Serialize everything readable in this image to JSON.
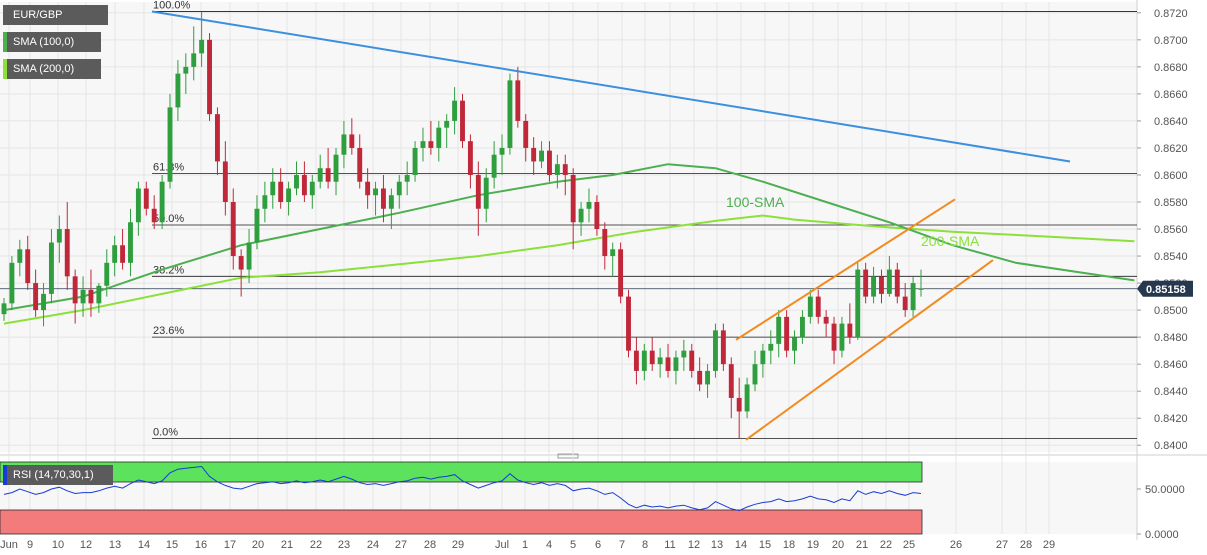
{
  "legend": {
    "symbol": "EUR/GBP",
    "sma100": "SMA (100,0)",
    "sma200": "SMA (200,0)",
    "rsi": "RSI (14,70,30,1)"
  },
  "colors": {
    "bull": "#2e9e3e",
    "bear": "#c0283a",
    "sma100": "#4caf50",
    "sma200": "#8be03a",
    "downtrend": "#3b8fe0",
    "channel": "#f28a1e",
    "rsi_line": "#1a3bd6",
    "rsi_over": "#5ce25c",
    "rsi_under": "#f47b7b",
    "price_tag": "#26384f"
  },
  "annotations": {
    "sma100": "100-SMA",
    "sma200": "200-SMA"
  },
  "chart_data": [
    {
      "type": "candlestick",
      "title": "EUR/GBP",
      "ylim": [
        0.8395,
        0.8728
      ],
      "y_ticks": [
        "0.8720",
        "0.8700",
        "0.8680",
        "0.8660",
        "0.8640",
        "0.8620",
        "0.8600",
        "0.8580",
        "0.8560",
        "0.8540",
        "0.8520",
        "0.8500",
        "0.8480",
        "0.8460",
        "0.8440",
        "0.8420",
        "0.8400"
      ],
      "x_ticks": [
        "Jun",
        "9",
        "10",
        "12",
        "13",
        "14",
        "15",
        "16",
        "17",
        "20",
        "21",
        "22",
        "23",
        "24",
        "27",
        "28",
        "29",
        "Jul",
        "1",
        "4",
        "5",
        "6",
        "7",
        "8",
        "11",
        "12",
        "13",
        "14",
        "15",
        "18",
        "19",
        "20",
        "21",
        "22",
        "25",
        "26",
        "27",
        "28",
        "29"
      ],
      "last_price": "0.85158",
      "fibonacci": [
        {
          "label": "100.0%",
          "value": 0.8721
        },
        {
          "label": "61.8%",
          "value": 0.8601
        },
        {
          "label": "50.0%",
          "value": 0.8563
        },
        {
          "label": "38.2%",
          "value": 0.8525
        },
        {
          "label": "23.6%",
          "value": 0.848
        },
        {
          "label": "0.0%",
          "value": 0.8405
        }
      ],
      "candles": [
        [
          0.8497,
          0.8509,
          0.8492,
          0.8505
        ],
        [
          0.8505,
          0.854,
          0.85,
          0.8535
        ],
        [
          0.8535,
          0.8552,
          0.8525,
          0.8545
        ],
        [
          0.8545,
          0.8555,
          0.8515,
          0.852
        ],
        [
          0.852,
          0.853,
          0.8495,
          0.85
        ],
        [
          0.85,
          0.852,
          0.8488,
          0.8512
        ],
        [
          0.8512,
          0.856,
          0.8505,
          0.855
        ],
        [
          0.855,
          0.857,
          0.8535,
          0.856
        ],
        [
          0.856,
          0.858,
          0.8515,
          0.8525
        ],
        [
          0.8525,
          0.853,
          0.849,
          0.8505
        ],
        [
          0.8505,
          0.8525,
          0.8495,
          0.8515
        ],
        [
          0.8515,
          0.853,
          0.8495,
          0.8505
        ],
        [
          0.8505,
          0.852,
          0.8498,
          0.8518
        ],
        [
          0.8518,
          0.8545,
          0.851,
          0.8535
        ],
        [
          0.8535,
          0.8555,
          0.8525,
          0.8548
        ],
        [
          0.8548,
          0.856,
          0.853,
          0.8535
        ],
        [
          0.8535,
          0.8575,
          0.8525,
          0.8565
        ],
        [
          0.8565,
          0.8595,
          0.8555,
          0.859
        ],
        [
          0.859,
          0.8595,
          0.857,
          0.8575
        ],
        [
          0.8575,
          0.8585,
          0.856,
          0.8565
        ],
        [
          0.8565,
          0.86,
          0.856,
          0.8595
        ],
        [
          0.8595,
          0.866,
          0.859,
          0.865
        ],
        [
          0.865,
          0.8685,
          0.864,
          0.8675
        ],
        [
          0.8675,
          0.869,
          0.866,
          0.868
        ],
        [
          0.868,
          0.871,
          0.867,
          0.869
        ],
        [
          0.869,
          0.8721,
          0.868,
          0.87
        ],
        [
          0.87,
          0.8705,
          0.864,
          0.8645
        ],
        [
          0.8645,
          0.865,
          0.86,
          0.861
        ],
        [
          0.861,
          0.8625,
          0.857,
          0.858
        ],
        [
          0.858,
          0.859,
          0.853,
          0.854
        ],
        [
          0.854,
          0.8545,
          0.851,
          0.853
        ],
        [
          0.853,
          0.856,
          0.852,
          0.855
        ],
        [
          0.855,
          0.8585,
          0.8545,
          0.8575
        ],
        [
          0.8575,
          0.8595,
          0.8565,
          0.8585
        ],
        [
          0.8585,
          0.8605,
          0.8575,
          0.8595
        ],
        [
          0.8595,
          0.8605,
          0.8575,
          0.858
        ],
        [
          0.858,
          0.8595,
          0.857,
          0.859
        ],
        [
          0.859,
          0.861,
          0.8585,
          0.86
        ],
        [
          0.86,
          0.861,
          0.858,
          0.8585
        ],
        [
          0.8585,
          0.86,
          0.8575,
          0.8595
        ],
        [
          0.8595,
          0.8615,
          0.859,
          0.8605
        ],
        [
          0.8605,
          0.862,
          0.859,
          0.8595
        ],
        [
          0.8595,
          0.862,
          0.8585,
          0.8615
        ],
        [
          0.8615,
          0.864,
          0.8605,
          0.863
        ],
        [
          0.863,
          0.8642,
          0.8615,
          0.862
        ],
        [
          0.862,
          0.863,
          0.859,
          0.8595
        ],
        [
          0.8595,
          0.8605,
          0.8575,
          0.8585
        ],
        [
          0.8585,
          0.8595,
          0.857,
          0.859
        ],
        [
          0.859,
          0.86,
          0.8565,
          0.8575
        ],
        [
          0.8575,
          0.859,
          0.856,
          0.8585
        ],
        [
          0.8585,
          0.86,
          0.8575,
          0.8595
        ],
        [
          0.8595,
          0.861,
          0.8585,
          0.86
        ],
        [
          0.86,
          0.8625,
          0.8595,
          0.862
        ],
        [
          0.862,
          0.8635,
          0.861,
          0.8625
        ],
        [
          0.8625,
          0.864,
          0.8615,
          0.862
        ],
        [
          0.862,
          0.864,
          0.861,
          0.8635
        ],
        [
          0.8635,
          0.8645,
          0.862,
          0.864
        ],
        [
          0.864,
          0.8665,
          0.863,
          0.8655
        ],
        [
          0.8655,
          0.866,
          0.862,
          0.8625
        ],
        [
          0.8625,
          0.863,
          0.859,
          0.86
        ],
        [
          0.86,
          0.861,
          0.8555,
          0.8575
        ],
        [
          0.8575,
          0.8605,
          0.8565,
          0.8598
        ],
        [
          0.8598,
          0.8625,
          0.859,
          0.8615
        ],
        [
          0.8615,
          0.863,
          0.86,
          0.862
        ],
        [
          0.862,
          0.8675,
          0.8615,
          0.867
        ],
        [
          0.867,
          0.868,
          0.8635,
          0.864
        ],
        [
          0.864,
          0.8645,
          0.861,
          0.862
        ],
        [
          0.862,
          0.8628,
          0.86,
          0.861
        ],
        [
          0.861,
          0.8625,
          0.8605,
          0.8618
        ],
        [
          0.8618,
          0.8625,
          0.8595,
          0.86
        ],
        [
          0.86,
          0.8615,
          0.859,
          0.8608
        ],
        [
          0.8608,
          0.8615,
          0.8585,
          0.86
        ],
        [
          0.86,
          0.8605,
          0.8545,
          0.8565
        ],
        [
          0.8565,
          0.858,
          0.8555,
          0.8575
        ],
        [
          0.8575,
          0.859,
          0.8565,
          0.858
        ],
        [
          0.858,
          0.8585,
          0.8555,
          0.856
        ],
        [
          0.856,
          0.8565,
          0.853,
          0.854
        ],
        [
          0.854,
          0.855,
          0.8525,
          0.8545
        ],
        [
          0.8545,
          0.855,
          0.8505,
          0.851
        ],
        [
          0.851,
          0.8515,
          0.8465,
          0.847
        ],
        [
          0.847,
          0.848,
          0.8445,
          0.8455
        ],
        [
          0.8455,
          0.8475,
          0.8448,
          0.847
        ],
        [
          0.847,
          0.848,
          0.8455,
          0.846
        ],
        [
          0.846,
          0.8472,
          0.845,
          0.8465
        ],
        [
          0.8465,
          0.8475,
          0.845,
          0.8455
        ],
        [
          0.8455,
          0.847,
          0.8445,
          0.8465
        ],
        [
          0.8465,
          0.8478,
          0.8455,
          0.847
        ],
        [
          0.847,
          0.8475,
          0.845,
          0.8455
        ],
        [
          0.8455,
          0.8465,
          0.844,
          0.8445
        ],
        [
          0.8445,
          0.846,
          0.8435,
          0.8455
        ],
        [
          0.8455,
          0.849,
          0.845,
          0.8485
        ],
        [
          0.8485,
          0.849,
          0.8455,
          0.846
        ],
        [
          0.846,
          0.8465,
          0.842,
          0.8435
        ],
        [
          0.8435,
          0.845,
          0.8405,
          0.8425
        ],
        [
          0.8425,
          0.845,
          0.842,
          0.8445
        ],
        [
          0.8445,
          0.847,
          0.844,
          0.846
        ],
        [
          0.846,
          0.8475,
          0.845,
          0.847
        ],
        [
          0.847,
          0.8485,
          0.846,
          0.8475
        ],
        [
          0.8475,
          0.85,
          0.8465,
          0.8495
        ],
        [
          0.8495,
          0.85,
          0.8465,
          0.847
        ],
        [
          0.847,
          0.8485,
          0.846,
          0.848
        ],
        [
          0.848,
          0.85,
          0.8475,
          0.8495
        ],
        [
          0.8495,
          0.8515,
          0.849,
          0.851
        ],
        [
          0.851,
          0.8515,
          0.849,
          0.8495
        ],
        [
          0.8495,
          0.85,
          0.848,
          0.849
        ],
        [
          0.849,
          0.8495,
          0.846,
          0.847
        ],
        [
          0.847,
          0.8495,
          0.8465,
          0.849
        ],
        [
          0.849,
          0.8505,
          0.8475,
          0.848
        ],
        [
          0.848,
          0.8535,
          0.8478,
          0.853
        ],
        [
          0.853,
          0.8535,
          0.8505,
          0.851
        ],
        [
          0.851,
          0.8532,
          0.8505,
          0.8525
        ],
        [
          0.8525,
          0.853,
          0.8505,
          0.8512
        ],
        [
          0.8512,
          0.854,
          0.851,
          0.853
        ],
        [
          0.853,
          0.8535,
          0.8505,
          0.851
        ],
        [
          0.851,
          0.852,
          0.8495,
          0.85
        ],
        [
          0.85,
          0.8525,
          0.8495,
          0.852
        ],
        [
          0.8515,
          0.853,
          0.851,
          0.8516
        ]
      ],
      "sma100": [
        [
          0,
          0.85
        ],
        [
          10,
          0.851
        ],
        [
          20,
          0.853
        ],
        [
          30,
          0.8548
        ],
        [
          40,
          0.856
        ],
        [
          50,
          0.8572
        ],
        [
          60,
          0.8585
        ],
        [
          70,
          0.8595
        ],
        [
          77,
          0.86
        ],
        [
          84,
          0.8608
        ],
        [
          90,
          0.8605
        ],
        [
          96,
          0.8595
        ],
        [
          104,
          0.858
        ],
        [
          112,
          0.8565
        ],
        [
          120,
          0.8548
        ],
        [
          128,
          0.8535
        ],
        [
          136,
          0.8528
        ],
        [
          143,
          0.8522
        ]
      ],
      "sma200": [
        [
          0,
          0.849
        ],
        [
          10,
          0.85
        ],
        [
          20,
          0.8512
        ],
        [
          30,
          0.8524
        ],
        [
          40,
          0.8528
        ],
        [
          50,
          0.8534
        ],
        [
          60,
          0.854
        ],
        [
          70,
          0.8548
        ],
        [
          80,
          0.8558
        ],
        [
          90,
          0.8566
        ],
        [
          96,
          0.857
        ],
        [
          100,
          0.8567
        ],
        [
          110,
          0.8562
        ],
        [
          120,
          0.8558
        ],
        [
          130,
          0.8555
        ],
        [
          143,
          0.8551
        ]
      ],
      "downtrend": [
        [
          0.8721
        ],
        [
          0.861
        ]
      ],
      "channel_upper": [
        0.8478,
        0.8582
      ],
      "channel_lower": [
        0.8404,
        0.8537
      ]
    },
    {
      "type": "line",
      "title": "RSI (14,70,30,1)",
      "ylim": [
        0,
        80
      ],
      "y_ticks": [
        "50.0000",
        "0.0000"
      ],
      "overbought": 70,
      "oversold": 30,
      "values": [
        44,
        46,
        50,
        47,
        44,
        46,
        50,
        52,
        48,
        45,
        46,
        46,
        48,
        51,
        53,
        51,
        56,
        60,
        58,
        56,
        59,
        68,
        72,
        73,
        74,
        75,
        64,
        58,
        54,
        51,
        50,
        53,
        56,
        57,
        58,
        56,
        57,
        59,
        57,
        58,
        60,
        58,
        61,
        64,
        61,
        57,
        55,
        56,
        54,
        56,
        58,
        59,
        62,
        63,
        61,
        63,
        64,
        66,
        59,
        55,
        51,
        54,
        57,
        59,
        67,
        60,
        57,
        55,
        57,
        54,
        56,
        54,
        48,
        50,
        51,
        48,
        44,
        46,
        40,
        33,
        29,
        32,
        30,
        31,
        29,
        31,
        32,
        29,
        27,
        29,
        36,
        32,
        28,
        26,
        30,
        33,
        35,
        36,
        39,
        36,
        37,
        39,
        42,
        39,
        38,
        35,
        39,
        37,
        48,
        44,
        47,
        45,
        48,
        45,
        43,
        46,
        45
      ]
    }
  ]
}
